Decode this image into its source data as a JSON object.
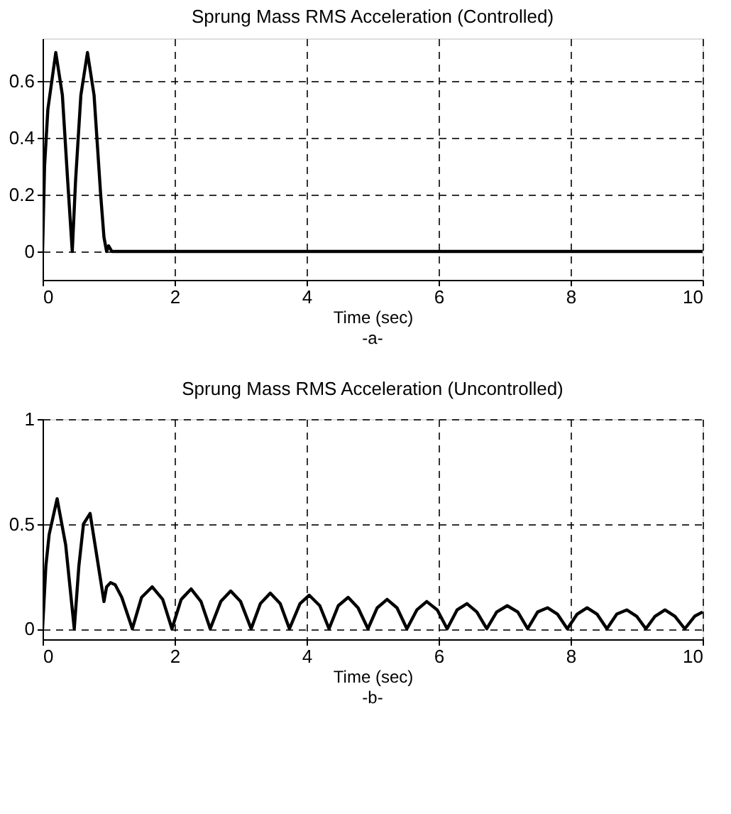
{
  "chart_data": [
    {
      "type": "line",
      "title": "Sprung Mass RMS Acceleration (Controlled)",
      "xlabel": "Time (sec)",
      "annotations": [
        "-a-"
      ],
      "series": [
        {
          "color": "#000000",
          "x": [
            0,
            0.03,
            0.08,
            0.2,
            0.3,
            0.38,
            0.45,
            0.5,
            0.58,
            0.68,
            0.78,
            0.88,
            0.93,
            0.97,
            1.0,
            1.05,
            10
          ],
          "values": [
            0,
            0.3,
            0.5,
            0.7,
            0.55,
            0.25,
            0,
            0.25,
            0.55,
            0.7,
            0.55,
            0.2,
            0.05,
            0,
            0.02,
            0,
            0
          ]
        }
      ],
      "xlim": [
        0,
        10
      ],
      "xticks": [
        0,
        2,
        4,
        6,
        8,
        10
      ],
      "ylim": [
        -0.1,
        0.75
      ],
      "yticks": [
        0,
        0.2,
        0.4,
        0.6
      ],
      "grid": true,
      "line_style": "solid",
      "marker": "none"
    },
    {
      "type": "line",
      "title": "Sprung Mass RMS Acceleration (Uncontrolled)",
      "xlabel": "Time (sec)",
      "annotations": [
        "-b-"
      ],
      "series": [
        {
          "color": "#000000",
          "x": [
            0,
            0.05,
            0.1,
            0.22,
            0.35,
            0.48,
            0.55,
            0.62,
            0.72,
            0.82,
            0.93,
            0.97,
            1.03,
            1.1,
            1.2,
            1.36,
            1.5,
            1.66,
            1.82,
            1.96,
            2.1,
            2.25,
            2.4,
            2.54,
            2.7,
            2.85,
            3.0,
            3.16,
            3.3,
            3.45,
            3.6,
            3.74,
            3.9,
            4.04,
            4.2,
            4.34,
            4.48,
            4.63,
            4.78,
            4.93,
            5.07,
            5.22,
            5.37,
            5.52,
            5.67,
            5.82,
            5.98,
            6.13,
            6.28,
            6.43,
            6.58,
            6.73,
            6.88,
            7.04,
            7.2,
            7.35,
            7.5,
            7.65,
            7.8,
            7.95,
            8.1,
            8.25,
            8.4,
            8.55,
            8.7,
            8.85,
            9.0,
            9.14,
            9.28,
            9.43,
            9.58,
            9.73,
            9.88,
            10.0
          ],
          "values": [
            0,
            0.3,
            0.45,
            0.62,
            0.4,
            0,
            0.3,
            0.5,
            0.55,
            0.35,
            0.13,
            0.2,
            0.22,
            0.21,
            0.15,
            0,
            0.15,
            0.2,
            0.14,
            0,
            0.14,
            0.19,
            0.13,
            0,
            0.13,
            0.18,
            0.13,
            0,
            0.12,
            0.17,
            0.12,
            0,
            0.12,
            0.16,
            0.11,
            0,
            0.11,
            0.15,
            0.1,
            0,
            0.1,
            0.14,
            0.1,
            0,
            0.09,
            0.13,
            0.09,
            0,
            0.09,
            0.12,
            0.08,
            0,
            0.08,
            0.11,
            0.08,
            0,
            0.08,
            0.1,
            0.07,
            0,
            0.07,
            0.1,
            0.07,
            0,
            0.07,
            0.09,
            0.06,
            0,
            0.06,
            0.09,
            0.06,
            0,
            0.06,
            0.08
          ]
        }
      ],
      "xlim": [
        0,
        10
      ],
      "xticks": [
        0,
        2,
        4,
        6,
        8,
        10
      ],
      "ylim": [
        -0.05,
        1
      ],
      "yticks": [
        0,
        0.5,
        1
      ],
      "grid": true,
      "line_style": "solid",
      "marker": "none"
    }
  ]
}
